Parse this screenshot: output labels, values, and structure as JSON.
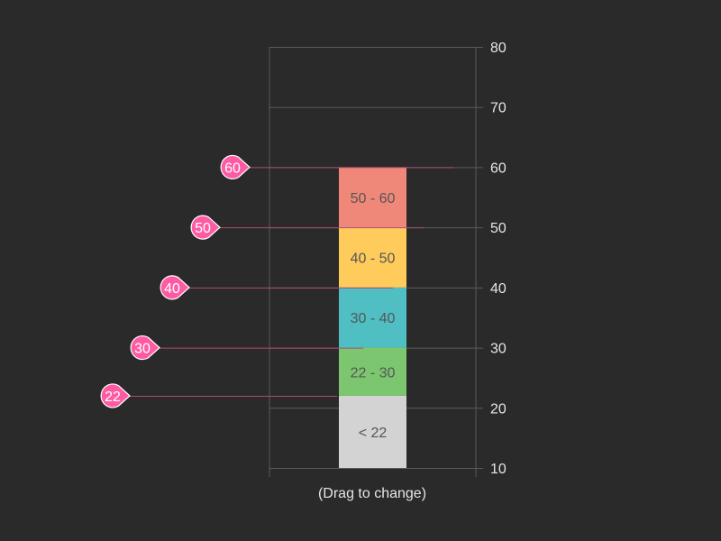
{
  "chart_data": {
    "type": "bar",
    "orientation": "vertical-stacked-bands",
    "ylim": [
      10,
      80
    ],
    "yticks": [
      10,
      20,
      30,
      40,
      50,
      60,
      70,
      80
    ],
    "bands": [
      {
        "from": 10,
        "to": 22,
        "label": "< 22",
        "color": "#d3d3d3"
      },
      {
        "from": 22,
        "to": 30,
        "label": "22 - 30",
        "color": "#7bc66f"
      },
      {
        "from": 30,
        "to": 40,
        "label": "30 - 40",
        "color": "#4fbfc3"
      },
      {
        "from": 40,
        "to": 50,
        "label": "40 - 50",
        "color": "#ffcc5c"
      },
      {
        "from": 50,
        "to": 60,
        "label": "50 - 60",
        "color": "#f0887a"
      }
    ],
    "handles": [
      {
        "value": 60,
        "label": "60"
      },
      {
        "value": 50,
        "label": "50"
      },
      {
        "value": 40,
        "label": "40"
      },
      {
        "value": 30,
        "label": "30"
      },
      {
        "value": 22,
        "label": "22"
      }
    ],
    "handle_color": "#ff5ba3",
    "xlabel": "(Drag to change)",
    "grid": true
  }
}
